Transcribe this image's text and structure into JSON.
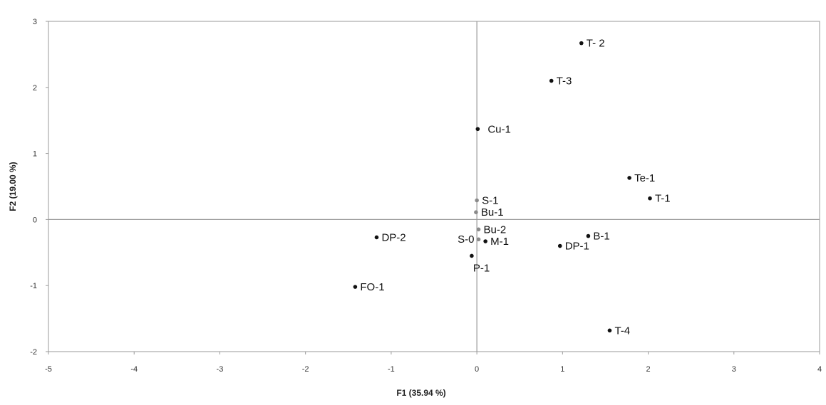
{
  "chart_data": {
    "type": "scatter",
    "title": "",
    "xlabel": "F1 (35.94 %)",
    "ylabel": "F2 (19.00 %)",
    "xlim": [
      -5,
      4
    ],
    "ylim": [
      -2,
      3
    ],
    "x_ticks": [
      -5,
      -4,
      -3,
      -2,
      -1,
      0,
      1,
      2,
      3,
      4
    ],
    "y_ticks": [
      -2,
      -1,
      0,
      1,
      2,
      3
    ],
    "grid": false,
    "origin_lines": true,
    "colors": {
      "dark": "#111111",
      "grey": "#8a8a8a",
      "axis": "#9a9a9a"
    },
    "points": [
      {
        "label": "T- 2",
        "x": 1.22,
        "y": 2.67,
        "color": "dark"
      },
      {
        "label": "T-3",
        "x": 0.87,
        "y": 2.1,
        "color": "dark"
      },
      {
        "label": "Cu-1",
        "x": 0.01,
        "y": 1.37,
        "color": "dark"
      },
      {
        "label": "Te-1",
        "x": 1.78,
        "y": 0.63,
        "color": "dark"
      },
      {
        "label": "T-1",
        "x": 2.02,
        "y": 0.32,
        "color": "dark"
      },
      {
        "label": "S-1",
        "x": 0.0,
        "y": 0.29,
        "color": "grey"
      },
      {
        "label": "Bu-1",
        "x": -0.01,
        "y": 0.11,
        "color": "grey"
      },
      {
        "label": "Bu-2",
        "x": 0.02,
        "y": -0.15,
        "color": "grey"
      },
      {
        "label": "B-1",
        "x": 1.3,
        "y": -0.25,
        "color": "dark"
      },
      {
        "label": "DP-2",
        "x": -1.17,
        "y": -0.27,
        "color": "dark"
      },
      {
        "label": "S-0",
        "x": 0.02,
        "y": -0.3,
        "color": "grey"
      },
      {
        "label": "M-1",
        "x": 0.1,
        "y": -0.33,
        "color": "dark"
      },
      {
        "label": "DP-1",
        "x": 0.97,
        "y": -0.4,
        "color": "dark"
      },
      {
        "label": "P-1",
        "x": -0.06,
        "y": -0.55,
        "color": "dark"
      },
      {
        "label": "FO-1",
        "x": -1.42,
        "y": -1.02,
        "color": "dark"
      },
      {
        "label": "T-4",
        "x": 1.55,
        "y": -1.68,
        "color": "dark"
      }
    ]
  }
}
